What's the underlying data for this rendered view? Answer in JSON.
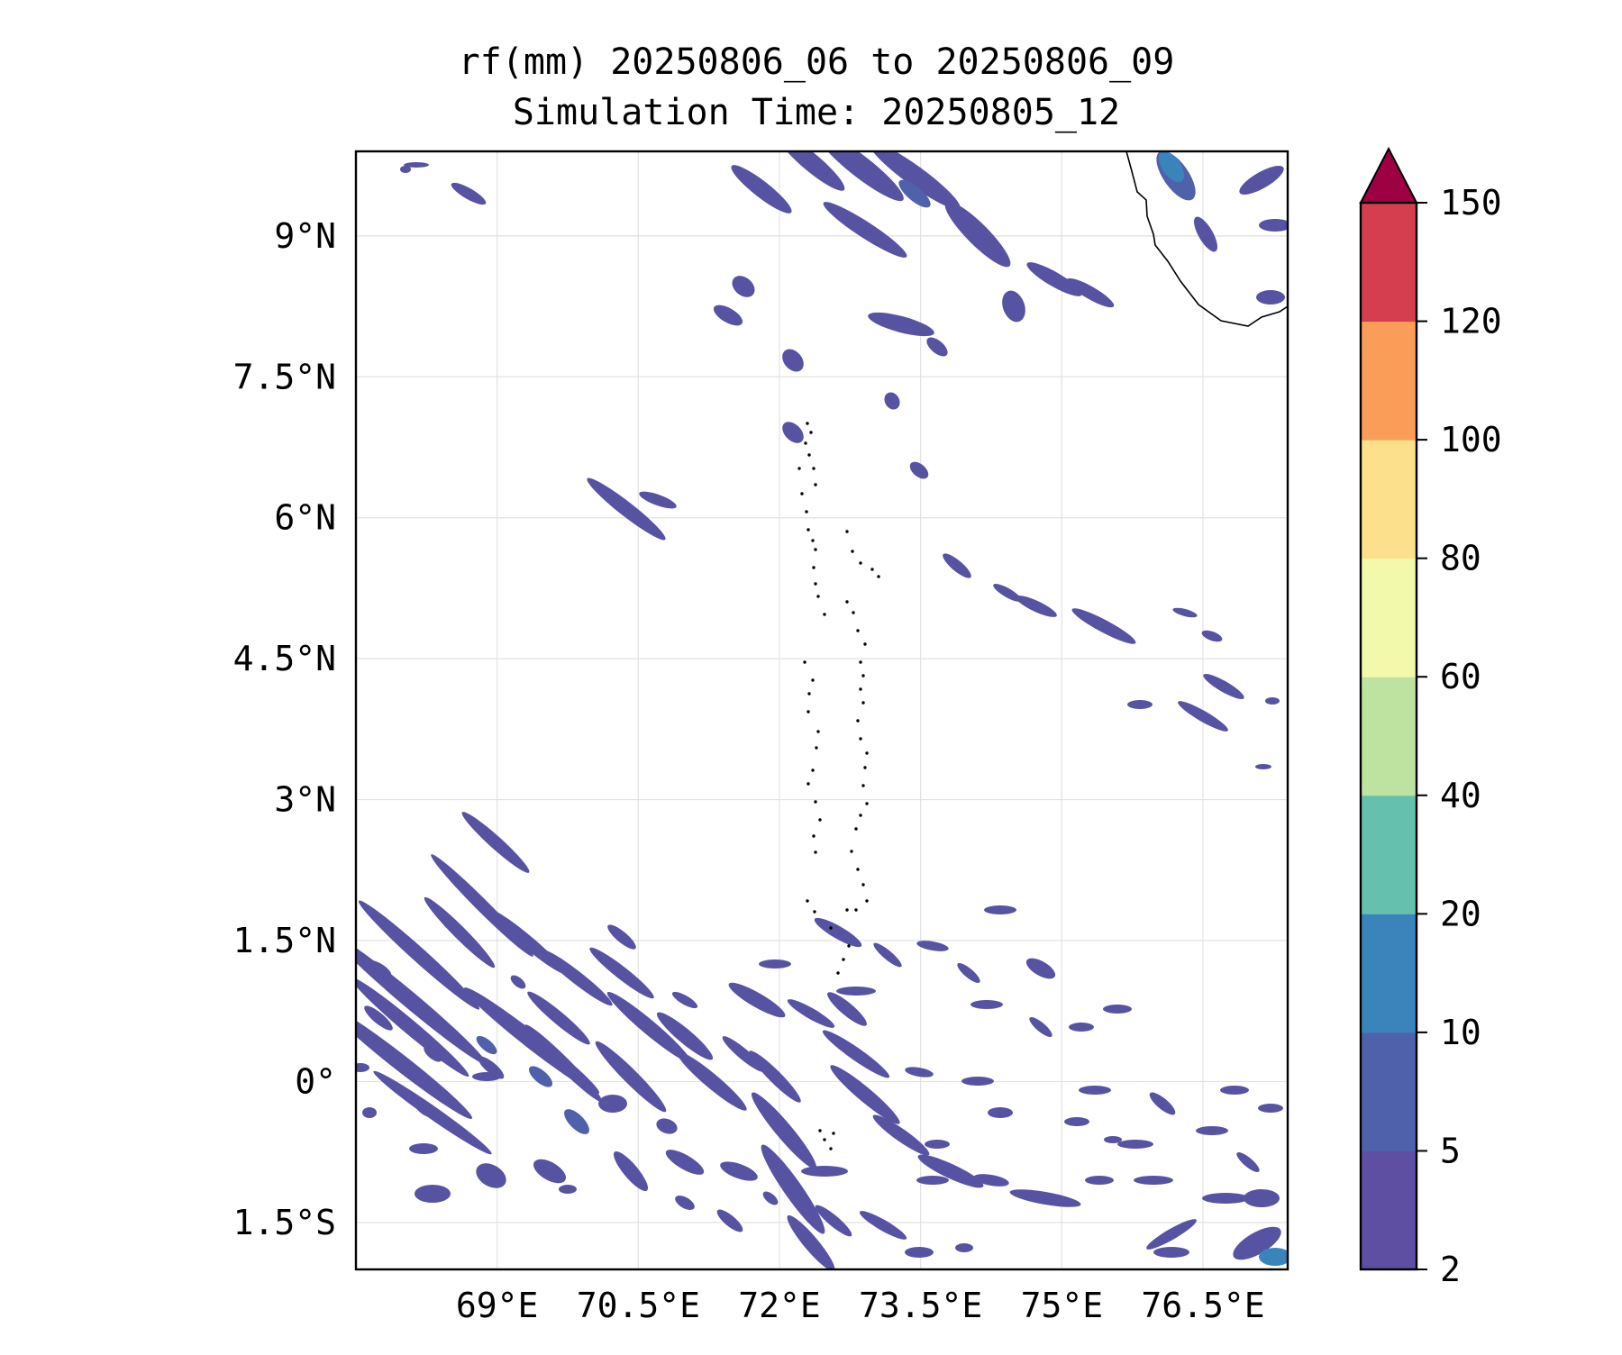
{
  "title": {
    "line1": "rf(mm) 20250806_06 to 20250806_09",
    "line2": "Simulation Time: 20250805_12"
  },
  "map": {
    "lon_range": [
      67.5,
      77.4
    ],
    "lat_range": [
      -2.0,
      9.9
    ],
    "lon_ticks": [
      {
        "value": 69.0,
        "label": "69°E"
      },
      {
        "value": 70.5,
        "label": "70.5°E"
      },
      {
        "value": 72.0,
        "label": "72°E"
      },
      {
        "value": 73.5,
        "label": "73.5°E"
      },
      {
        "value": 75.0,
        "label": "75°E"
      },
      {
        "value": 76.5,
        "label": "76.5°E"
      }
    ],
    "lat_ticks": [
      {
        "value": 9.0,
        "label": "9°N"
      },
      {
        "value": 7.5,
        "label": "7.5°N"
      },
      {
        "value": 6.0,
        "label": "6°N"
      },
      {
        "value": 4.5,
        "label": "4.5°N"
      },
      {
        "value": 3.0,
        "label": "3°N"
      },
      {
        "value": 1.5,
        "label": "1.5°N"
      },
      {
        "value": 0.0,
        "label": "0°"
      },
      {
        "value": -1.5,
        "label": "1.5°S"
      }
    ],
    "gridlines": true
  },
  "colorbar": {
    "levels": [
      "2",
      "5",
      "10",
      "20",
      "40",
      "60",
      "80",
      "100",
      "120",
      "150"
    ],
    "colors": [
      "#5e4fa2",
      "#4f61aa",
      "#3a84bb",
      "#65c0ae",
      "#bee3a0",
      "#f2f9aa",
      "#fde08b",
      "#f99d59",
      "#d53e4f"
    ],
    "extend_color": "#9e0142"
  },
  "rain_colors": {
    "light": "#5753a3",
    "mid": "#4f61aa",
    "heavy": "#3a84bb"
  }
}
